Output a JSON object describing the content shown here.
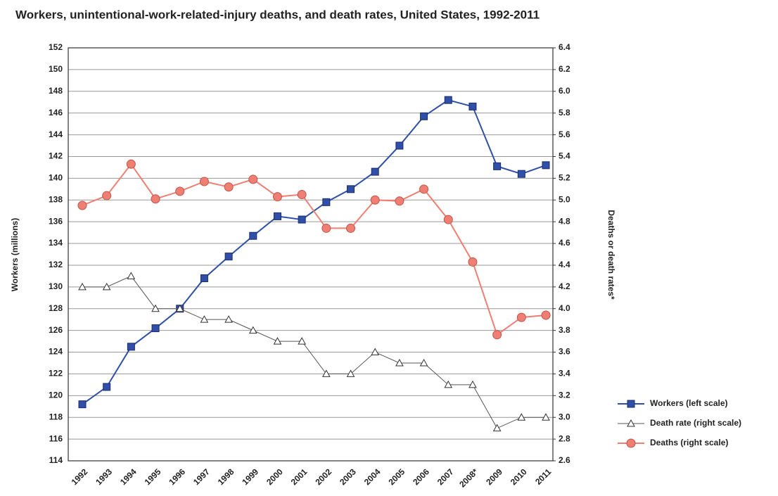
{
  "chart_data": {
    "type": "line",
    "title": "Workers, unintentional-work-related-injury deaths, and death rates, United States, 1992-2011",
    "ylabel": "Workers (millions)",
    "y2label": "Deaths or death rates*",
    "categories": [
      "1992",
      "1993",
      "1994",
      "1995",
      "1996",
      "1997",
      "1998",
      "1999",
      "2000",
      "2001",
      "2002",
      "2003",
      "2004",
      "2005",
      "2006",
      "2007",
      "2008*",
      "2009",
      "2010",
      "2011"
    ],
    "series": [
      {
        "name": "Workers (left scale)",
        "color": "#2f4fa8",
        "marker": "square",
        "axis": "y",
        "values": [
          119.2,
          120.8,
          124.5,
          126.2,
          128.0,
          130.8,
          132.8,
          134.7,
          136.5,
          136.2,
          137.8,
          139.0,
          140.6,
          143.0,
          145.7,
          147.2,
          146.6,
          141.1,
          140.4,
          141.2
        ]
      },
      {
        "name": "Death rate (right scale)",
        "color": "#555555",
        "marker": "triangle",
        "axis": "y2",
        "values": [
          4.2,
          4.2,
          4.3,
          4.0,
          4.0,
          3.9,
          3.9,
          3.8,
          3.7,
          3.7,
          3.4,
          3.4,
          3.6,
          3.5,
          3.5,
          3.3,
          3.3,
          2.9,
          3.0,
          3.0
        ]
      },
      {
        "name": "Deaths (right scale)",
        "color": "#ee7f72",
        "marker": "circle",
        "axis": "y2",
        "values": [
          4.95,
          5.04,
          5.33,
          5.01,
          5.08,
          5.17,
          5.12,
          5.19,
          5.03,
          5.05,
          4.74,
          4.74,
          5.0,
          4.99,
          5.1,
          4.82,
          4.43,
          3.76,
          3.92,
          3.94
        ]
      }
    ],
    "ylim": [
      114,
      152
    ],
    "yticks": [
      114,
      116,
      118,
      120,
      122,
      124,
      126,
      128,
      130,
      132,
      134,
      136,
      138,
      140,
      142,
      144,
      146,
      148,
      150,
      152
    ],
    "y2lim": [
      2.6,
      6.4
    ],
    "y2ticks": [
      2.6,
      2.8,
      {
        "value": 3,
        "label": "3.0"
      },
      3.2,
      3.4,
      3.6,
      3.8,
      {
        "value": 4,
        "label": "4.0"
      },
      4.2,
      4.4,
      4.6,
      4.8,
      {
        "value": 5,
        "label": "5.0"
      },
      5.2,
      5.4,
      5.6,
      5.8,
      {
        "value": 6,
        "label": "6.0"
      },
      6.2,
      6.4
    ],
    "grid": true,
    "legend": "lower right"
  }
}
